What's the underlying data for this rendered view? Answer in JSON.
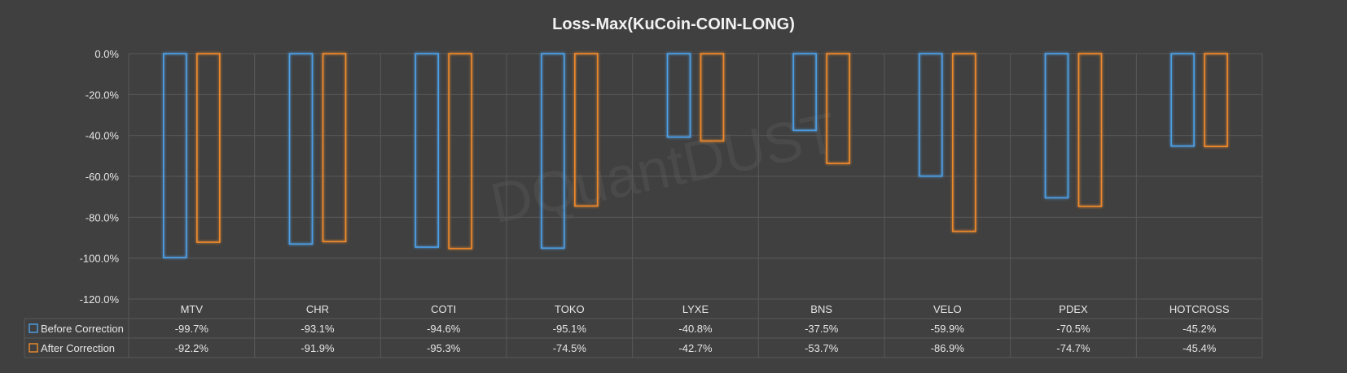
{
  "chart_data": {
    "type": "bar",
    "title": "Loss-Max(KuCoin-COIN-LONG)",
    "categories": [
      "MTV",
      "CHR",
      "COTI",
      "TOKO",
      "LYXE",
      "BNS",
      "VELO",
      "PDEX",
      "HOTCROSS"
    ],
    "series": [
      {
        "name": "Before Correction",
        "color": "#4ea0e8",
        "values": [
          -99.7,
          -93.1,
          -94.6,
          -95.1,
          -40.8,
          -37.5,
          -59.9,
          -70.5,
          -45.2
        ],
        "labels": [
          "-99.7%",
          "-93.1%",
          "-94.6%",
          "-95.1%",
          "-40.8%",
          "-37.5%",
          "-59.9%",
          "-70.5%",
          "-45.2%"
        ]
      },
      {
        "name": "After Correction",
        "color": "#f08a2c",
        "values": [
          -92.2,
          -91.9,
          -95.3,
          -74.5,
          -42.7,
          -53.7,
          -86.9,
          -74.7,
          -45.4
        ],
        "labels": [
          "-92.2%",
          "-91.9%",
          "-95.3%",
          "-74.5%",
          "-42.7%",
          "-53.7%",
          "-86.9%",
          "-74.7%",
          "-45.4%"
        ]
      }
    ],
    "yticks": [
      "0.0%",
      "-20.0%",
      "-40.0%",
      "-60.0%",
      "-80.0%",
      "-100.0%",
      "-120.0%"
    ],
    "ylim": [
      -120,
      0
    ],
    "grid": true,
    "legend": "data-table-below",
    "watermark": "DQuantDUST",
    "colors": {
      "background": "#404040",
      "grid": "#595959",
      "text": "#e6e6e6",
      "title": "#f2f2f2"
    }
  }
}
